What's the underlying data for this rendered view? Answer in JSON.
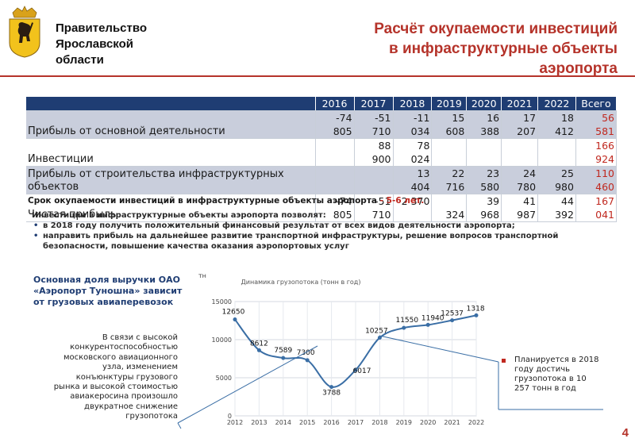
{
  "header": {
    "org_line1": "Правительство",
    "org_line2": "Ярославской",
    "org_line3": "области",
    "title_line1": "Расчёт окупаемости инвестиций",
    "title_line2": "в инфраструктурные объекты",
    "title_line3": "аэропорта",
    "colors": {
      "accent": "#b5332a",
      "table_header": "#1f3d73",
      "row_shade": "#c9cedc"
    }
  },
  "table": {
    "years": [
      "2016",
      "2017",
      "2018",
      "2019",
      "2020",
      "2021",
      "2022",
      "Всего"
    ],
    "rows": [
      {
        "label": "Прибыль от основной деятельности",
        "cells": [
          [
            "-74",
            "805"
          ],
          [
            "-51",
            "710"
          ],
          [
            "-11",
            "034"
          ],
          [
            "15",
            "608"
          ],
          [
            "16",
            "388"
          ],
          [
            "17",
            "207"
          ],
          [
            "18",
            "412"
          ],
          [
            "56",
            "581"
          ]
        ]
      },
      {
        "label": "Инвестиции",
        "cells": [
          [
            "",
            ""
          ],
          [
            "88",
            "900"
          ],
          [
            "78",
            "024"
          ],
          [
            "",
            ""
          ],
          [
            "",
            ""
          ],
          [
            "",
            ""
          ],
          [
            "",
            ""
          ],
          [
            "166",
            "924"
          ]
        ]
      },
      {
        "label": "Прибыль от строительства инфраструктурных объектов",
        "cells": [
          [
            "",
            ""
          ],
          [
            "",
            ""
          ],
          [
            "13",
            "404"
          ],
          [
            "22",
            "716"
          ],
          [
            "23",
            "580"
          ],
          [
            "24",
            "780"
          ],
          [
            "25",
            "980"
          ],
          [
            "110",
            "460"
          ]
        ]
      },
      {
        "label": "Чистая прибыль",
        "cells": [
          [
            "-74",
            "805"
          ],
          [
            "-51",
            "710"
          ],
          [
            "2 370",
            ""
          ],
          [
            "",
            "324"
          ],
          [
            "39",
            "968"
          ],
          [
            "41",
            "987"
          ],
          [
            "44",
            "392"
          ],
          [
            "167",
            "041"
          ]
        ]
      }
    ]
  },
  "notes": {
    "payback_prefix": "Срок окупаемости инвестиций в инфраструктурные объекты аэропорта",
    "payback_highlight": "- 5-6 лет.",
    "bullet_intro": "Инвестиции в инфраструктурные объекты аэропорта позволят:",
    "bullet_1": "в 2018 году получить положительный финансовый результат от всех видов деятельности аэропорта;",
    "bullet_2": "направить прибыль на дальнейшее развитие транспортной инфраструктуры, решение вопросов транспортной безопасности, повышение качества оказания аэропортовых услуг"
  },
  "left_text": {
    "main_share": "Основная доля выручки ОАО «Аэропорт Туношна» зависит от грузовых авиаперевозок",
    "reason": "В связи с высокой конкурентоспособностью московского авиационного узла, изменением конъюнктуры грузового рынка и высокой стоимостью авиакеросина произошло двукратное снижение грузопотока"
  },
  "plan_note": "Планируется в 2018 году достичь грузопотока в 10 257 тонн в год",
  "page_number": "4",
  "chart_data": {
    "type": "line",
    "title": "Динамика грузопотока (тонн в год)",
    "ylabel": "тн",
    "xlabel": "",
    "x": [
      "2012",
      "2013",
      "2014",
      "2015",
      "2016",
      "2017",
      "2018",
      "2019",
      "2020",
      "2021",
      "2022"
    ],
    "y_ticks": [
      "0",
      "5000",
      "10000",
      "15000"
    ],
    "ylim": [
      0,
      15000
    ],
    "series": [
      {
        "values": [
          12650,
          8612,
          7589,
          7300,
          3788,
          6017,
          10257,
          11550,
          11940,
          12537,
          13189
        ],
        "labels": [
          "12650",
          "8612",
          "7589",
          "7300",
          "3788",
          "6017",
          "10257",
          "11550",
          "11940",
          "12537",
          "13189"
        ],
        "color": "#3a6ea5"
      }
    ],
    "grid": true
  }
}
